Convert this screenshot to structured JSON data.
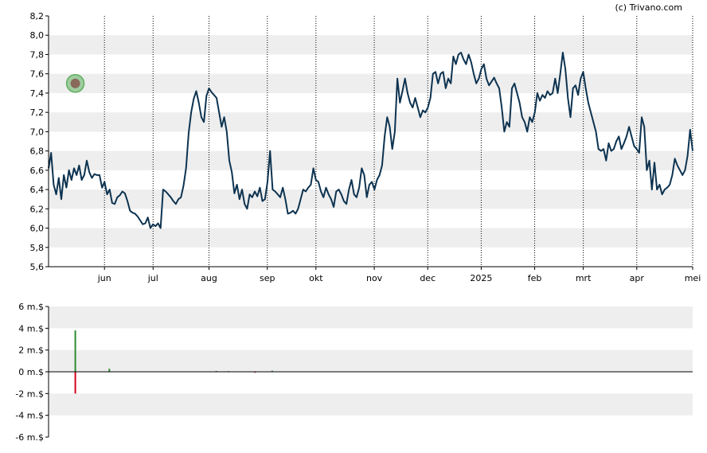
{
  "copyright": "(c) Trivano.com",
  "colors": {
    "band": "#eeeeee",
    "price_line": "#0d3350",
    "marker_fill": "#8a6a5a",
    "marker_ring": "#5fb05f",
    "volume_up": "#2e8b2e",
    "volume_down": "#d0021b",
    "axis": "#000000",
    "grid_dotted": "#000000"
  },
  "chart_data": [
    {
      "type": "line",
      "name": "price",
      "ylim": [
        5.6,
        8.2
      ],
      "yticks": [
        "5,6",
        "5,8",
        "6,0",
        "6,2",
        "6,4",
        "6,6",
        "6,8",
        "7,0",
        "7,2",
        "7,4",
        "7,6",
        "7,8",
        "8,0",
        "8,2"
      ],
      "ytick_values": [
        5.6,
        5.8,
        6.0,
        6.2,
        6.4,
        6.6,
        6.8,
        7.0,
        7.2,
        7.4,
        7.6,
        7.8,
        8.0,
        8.2
      ],
      "x_range": [
        0,
        265
      ],
      "xticks": [
        {
          "label": "jun",
          "x": 23
        },
        {
          "label": "jul",
          "x": 43
        },
        {
          "label": "aug",
          "x": 66
        },
        {
          "label": "sep",
          "x": 90
        },
        {
          "label": "okt",
          "x": 110
        },
        {
          "label": "nov",
          "x": 134
        },
        {
          "label": "dec",
          "x": 156
        },
        {
          "label": "2025",
          "x": 178
        },
        {
          "label": "feb",
          "x": 200
        },
        {
          "label": "mrt",
          "x": 220
        },
        {
          "label": "apr",
          "x": 242
        },
        {
          "label": "mei",
          "x": 265
        }
      ],
      "marker": {
        "x": 11,
        "y": 7.5
      },
      "values": [
        6.62,
        6.78,
        6.45,
        6.35,
        6.52,
        6.3,
        6.55,
        6.42,
        6.6,
        6.5,
        6.62,
        6.55,
        6.65,
        6.5,
        6.55,
        6.7,
        6.58,
        6.52,
        6.56,
        6.55,
        6.55,
        6.42,
        6.48,
        6.35,
        6.4,
        6.26,
        6.25,
        6.32,
        6.34,
        6.38,
        6.36,
        6.28,
        6.18,
        6.16,
        6.15,
        6.12,
        6.08,
        6.04,
        6.05,
        6.11,
        6.0,
        6.04,
        6.02,
        6.05,
        6.0,
        6.4,
        6.38,
        6.35,
        6.32,
        6.28,
        6.25,
        6.3,
        6.32,
        6.44,
        6.62,
        6.98,
        7.2,
        7.34,
        7.42,
        7.3,
        7.15,
        7.1,
        7.37,
        7.45,
        7.41,
        7.38,
        7.35,
        7.2,
        7.05,
        7.15,
        7.0,
        6.7,
        6.58,
        6.36,
        6.45,
        6.3,
        6.4,
        6.25,
        6.2,
        6.35,
        6.32,
        6.38,
        6.33,
        6.42,
        6.28,
        6.3,
        6.48,
        6.8,
        6.4,
        6.38,
        6.35,
        6.32,
        6.42,
        6.3,
        6.15,
        6.16,
        6.18,
        6.15,
        6.2,
        6.3,
        6.4,
        6.38,
        6.42,
        6.45,
        6.62,
        6.5,
        6.48,
        6.38,
        6.32,
        6.42,
        6.35,
        6.3,
        6.22,
        6.38,
        6.4,
        6.35,
        6.28,
        6.25,
        6.4,
        6.5,
        6.35,
        6.32,
        6.42,
        6.62,
        6.55,
        6.32,
        6.45,
        6.48,
        6.4,
        6.5,
        6.55,
        6.65,
        6.95,
        7.15,
        7.05,
        6.82,
        7.0,
        7.55,
        7.3,
        7.42,
        7.55,
        7.4,
        7.3,
        7.25,
        7.35,
        7.25,
        7.15,
        7.22,
        7.2,
        7.25,
        7.35,
        7.6,
        7.62,
        7.5,
        7.6,
        7.62,
        7.45,
        7.55,
        7.5,
        7.78,
        7.7,
        7.8,
        7.82,
        7.75,
        7.7,
        7.8,
        7.72,
        7.6,
        7.5,
        7.55,
        7.65,
        7.7,
        7.55,
        7.48,
        7.52,
        7.56,
        7.5,
        7.45,
        7.25,
        7.0,
        7.1,
        7.05,
        7.45,
        7.5,
        7.4,
        7.3,
        7.15,
        7.1,
        7.0,
        7.15,
        7.1,
        7.2,
        7.4,
        7.32,
        7.38,
        7.35,
        7.42,
        7.38,
        7.4,
        7.55,
        7.4,
        7.6,
        7.82,
        7.65,
        7.35,
        7.15,
        7.45,
        7.48,
        7.38,
        7.55,
        7.62,
        7.45,
        7.3,
        7.2,
        7.1,
        7.0,
        6.82,
        6.8,
        6.82,
        6.7,
        6.88,
        6.8,
        6.82,
        6.9,
        6.95,
        6.82,
        6.88,
        6.95,
        7.05,
        6.95,
        6.85,
        6.82,
        6.78,
        7.15,
        7.05,
        6.6,
        6.7,
        6.4,
        6.68,
        6.4,
        6.45,
        6.35,
        6.4,
        6.42,
        6.45,
        6.55,
        6.72,
        6.65,
        6.6,
        6.55,
        6.6,
        6.75,
        7.02,
        6.8
      ]
    },
    {
      "type": "bar",
      "name": "volume",
      "ylim": [
        -6,
        6
      ],
      "yticks": [
        "6 m.$",
        "4 m.$",
        "2 m.$",
        "0 m.$",
        "-2 m.$",
        "-4 m.$",
        "-6 m.$"
      ],
      "ytick_values": [
        6,
        4,
        2,
        0,
        -2,
        -4,
        -6
      ],
      "x_range": [
        0,
        265
      ],
      "bars": [
        {
          "x": 11,
          "value": 3.8
        },
        {
          "x": 11,
          "value": -2.0
        },
        {
          "x": 25,
          "value": 0.28
        },
        {
          "x": 69,
          "value": 0.08
        },
        {
          "x": 74,
          "value": 0.06
        },
        {
          "x": 85,
          "value": -0.08
        },
        {
          "x": 92,
          "value": 0.1
        }
      ]
    }
  ]
}
